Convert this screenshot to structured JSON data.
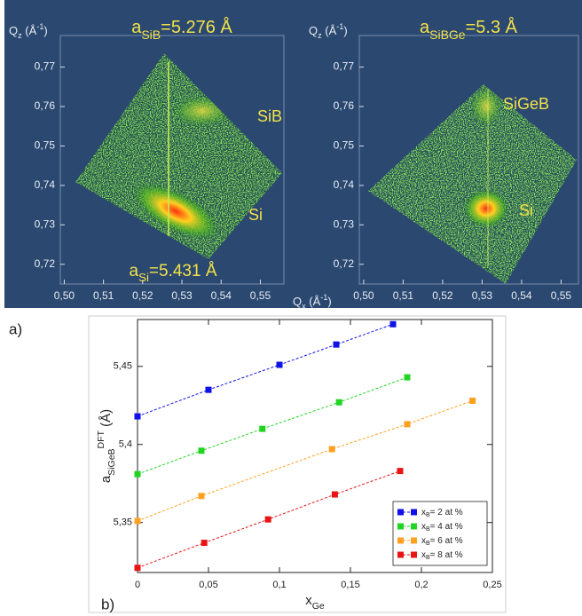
{
  "chart_data": [
    {
      "type": "map",
      "title": [
        {
          "t": "a"
        },
        {
          "sub": "SiB"
        },
        {
          "t": "=5.276 Å"
        }
      ],
      "y_label": [
        {
          "t": "Q"
        },
        {
          "sub": "z"
        },
        {
          "t": " (Å"
        },
        {
          "sup": "-1"
        },
        {
          "t": ")"
        }
      ],
      "x_label": [
        {
          "t": "Q"
        },
        {
          "sub": "x"
        },
        {
          "t": " (Å"
        },
        {
          "sup": "-1"
        },
        {
          "t": ")"
        }
      ],
      "annotations": [
        [
          {
            "t": "SiB"
          }
        ],
        [
          {
            "t": "Si"
          }
        ],
        [
          {
            "t": "a"
          },
          {
            "sub": "Si"
          },
          {
            "t": "=5.431 Å"
          }
        ]
      ],
      "xlim": [
        0.499,
        0.556
      ],
      "ylim": [
        0.715,
        0.778
      ],
      "xticks": [
        {
          "value": 0.5,
          "label": "0,50"
        },
        {
          "value": 0.51,
          "label": "0,51"
        },
        {
          "value": 0.52,
          "label": "0,52"
        },
        {
          "value": 0.53,
          "label": "0,53"
        },
        {
          "value": 0.54,
          "label": "0,54"
        },
        {
          "value": 0.55,
          "label": "0,55"
        }
      ],
      "yticks": [
        {
          "value": 0.72,
          "label": "0,72"
        },
        {
          "value": 0.73,
          "label": "0,73"
        },
        {
          "value": 0.74,
          "label": "0,74"
        },
        {
          "value": 0.75,
          "label": "0,75"
        },
        {
          "value": 0.76,
          "label": "0,76"
        },
        {
          "value": 0.77,
          "label": "0,77"
        }
      ]
    },
    {
      "type": "map",
      "title": [
        {
          "t": "a"
        },
        {
          "sub": "SiBGe"
        },
        {
          "t": "=5.3 Å"
        }
      ],
      "y_label": [
        {
          "t": "Q"
        },
        {
          "sub": "z"
        },
        {
          "t": " (Å"
        },
        {
          "sup": "-1"
        },
        {
          "t": ")"
        }
      ],
      "annotations": [
        [
          {
            "t": "SiGeB"
          }
        ],
        [
          {
            "t": "Si"
          }
        ]
      ],
      "xlim": [
        0.4989,
        0.5544
      ],
      "ylim": [
        0.715,
        0.778
      ],
      "xticks": [
        {
          "value": 0.5,
          "label": "0,50"
        },
        {
          "value": 0.51,
          "label": "0,51"
        },
        {
          "value": 0.52,
          "label": "0,52"
        },
        {
          "value": 0.53,
          "label": "0,53"
        },
        {
          "value": 0.54,
          "label": "0,54"
        },
        {
          "value": 0.55,
          "label": "0,55"
        }
      ],
      "yticks": [
        {
          "value": 0.72,
          "label": "0,72"
        },
        {
          "value": 0.73,
          "label": "0,73"
        },
        {
          "value": 0.74,
          "label": "0,74"
        },
        {
          "value": 0.75,
          "label": "0,75"
        },
        {
          "value": 0.76,
          "label": "0,76"
        },
        {
          "value": 0.77,
          "label": "0,77"
        }
      ]
    },
    {
      "type": "scatter",
      "panel_label": "b)",
      "x_label": [
        {
          "t": "x"
        },
        {
          "sub": "Ge"
        }
      ],
      "y_label": [
        {
          "t": "a"
        },
        {
          "sub": "SiGeB"
        },
        {
          "sup": "DFT"
        },
        {
          "t": " (Å)"
        }
      ],
      "xlim": [
        0,
        0.25
      ],
      "ylim": [
        5.318,
        5.48
      ],
      "xticks": [
        0,
        {
          "value": 0.05,
          "label": "0,05"
        },
        {
          "value": 0.1,
          "label": "0,1"
        },
        {
          "value": 0.15,
          "label": "0,15"
        },
        {
          "value": 0.2,
          "label": "0,2"
        },
        {
          "value": 0.25,
          "label": "0,25"
        }
      ],
      "yticks": [
        {
          "value": 5.35,
          "label": "5,35"
        },
        {
          "value": 5.4,
          "label": "5,4"
        },
        {
          "value": 5.45,
          "label": "5,45"
        }
      ],
      "legend": "lower right",
      "series": [
        {
          "name": [
            {
              "t": "x"
            },
            {
              "sub": "B"
            },
            {
              "t": "= 2 at %"
            }
          ],
          "color": "#1010e8",
          "x": [
            0,
            0.05,
            0.1,
            0.14,
            0.18
          ],
          "values": [
            5.418,
            5.435,
            5.451,
            5.464,
            5.477
          ]
        },
        {
          "name": [
            {
              "t": "x"
            },
            {
              "sub": "B"
            },
            {
              "t": "= 4 at %"
            }
          ],
          "color": "#22d422",
          "x": [
            0,
            0.045,
            0.088,
            0.142,
            0.19
          ],
          "values": [
            5.381,
            5.396,
            5.41,
            5.427,
            5.443
          ]
        },
        {
          "name": [
            {
              "t": "x"
            },
            {
              "sub": "B"
            },
            {
              "t": "= 6 at %"
            }
          ],
          "color": "#ffa020",
          "x": [
            0,
            0.045,
            0.137,
            0.19,
            0.236
          ],
          "values": [
            5.351,
            5.367,
            5.397,
            5.413,
            5.428
          ]
        },
        {
          "name": [
            {
              "t": "x"
            },
            {
              "sub": "B"
            },
            {
              "t": "= 8 at %"
            }
          ],
          "color": "#e81414",
          "x": [
            0,
            0.047,
            0.092,
            0.139,
            0.185
          ],
          "values": [
            5.321,
            5.337,
            5.352,
            5.368,
            5.383
          ]
        }
      ]
    }
  ],
  "panel_label": "a)"
}
